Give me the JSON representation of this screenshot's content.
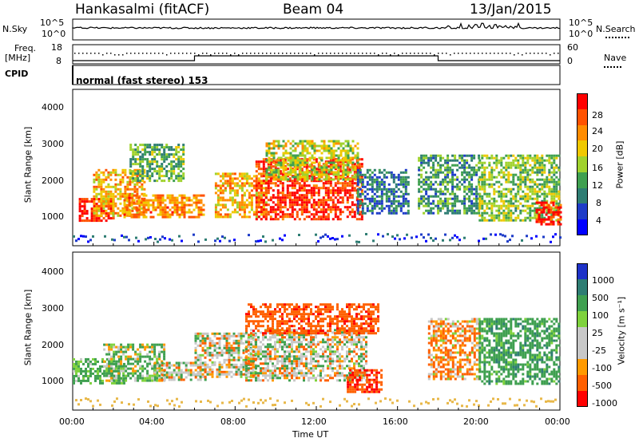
{
  "header": {
    "station": "Hankasalmi (fitACF)",
    "beam": "Beam 04",
    "date": "13/Jan/2015"
  },
  "nsky_panel": {
    "left_label": "N.Sky",
    "left_ticks": [
      "10^5",
      "10^0"
    ],
    "right_label": "N.Search",
    "right_ticks": [
      "10^5",
      "10^0"
    ]
  },
  "freq_panel": {
    "left_label_1": "Freq.",
    "left_label_2": "[MHz]",
    "left_ticks": [
      "18",
      "8"
    ],
    "right_label": "Nave",
    "right_ticks": [
      "60",
      "0"
    ]
  },
  "cpid_panel": {
    "label": "CPID",
    "program": "normal (fast stereo) 153"
  },
  "time_axis": {
    "ticks": [
      "00:00",
      "04:00",
      "08:00",
      "12:00",
      "16:00",
      "20:00",
      "00:00"
    ],
    "label": "Time UT"
  },
  "power_panel": {
    "ylabel": "Slant Range [km]",
    "yticks": [
      "4000",
      "3000",
      "2000",
      "1000"
    ],
    "colorbar_label": "Power [dB]",
    "colorbar_ticks": [
      "28",
      "24",
      "20",
      "16",
      "12",
      "8",
      "4"
    ],
    "colors": [
      "#ff0000",
      "#ff5200",
      "#ff8c00",
      "#f0c800",
      "#a0d22d",
      "#3fa050",
      "#2e7d73",
      "#1e3cc8",
      "#0000ff"
    ]
  },
  "velocity_panel": {
    "ylabel": "Slant Range [km]",
    "yticks": [
      "4000",
      "3000",
      "2000",
      "1000"
    ],
    "colorbar_label": "Velocity [m s⁻¹]",
    "colorbar_ticks": [
      "1000",
      "500",
      "100",
      "25",
      "-25",
      "-100",
      "-500",
      "-1000"
    ],
    "colors": [
      "#1e32c8",
      "#2e7d73",
      "#3fa050",
      "#7ed23c",
      "#c8c8c8",
      "#c8c8c8",
      "#ff9a00",
      "#ff6000",
      "#ff0000"
    ]
  },
  "chart_data": [
    {
      "type": "heatmap",
      "title": "Power",
      "xlabel": "Time UT",
      "ylabel": "Slant Range [km]",
      "xlim": [
        "00:00",
        "24:00"
      ],
      "ylim": [
        180,
        4500
      ],
      "colorbar": {
        "label": "Power [dB]",
        "range": [
          0,
          30
        ],
        "ticks": [
          4,
          8,
          12,
          16,
          20,
          24,
          28
        ]
      },
      "regions": [
        {
          "t": [
            0.3,
            2.0
          ],
          "r": [
            900,
            1500
          ],
          "level": 28
        },
        {
          "t": [
            1.0,
            3.5
          ],
          "r": [
            1000,
            2300
          ],
          "level": 20
        },
        {
          "t": [
            2.5,
            6.5
          ],
          "r": [
            1000,
            1600
          ],
          "level": 22
        },
        {
          "t": [
            2.8,
            5.5
          ],
          "r": [
            2000,
            3000
          ],
          "level": 12
        },
        {
          "t": [
            7.0,
            9.5
          ],
          "r": [
            1000,
            2200
          ],
          "level": 20
        },
        {
          "t": [
            9.0,
            14.3
          ],
          "r": [
            900,
            2600
          ],
          "level": 27
        },
        {
          "t": [
            9.5,
            14.0
          ],
          "r": [
            2000,
            3100
          ],
          "level": 16
        },
        {
          "t": [
            14.0,
            16.5
          ],
          "r": [
            1100,
            2300
          ],
          "level": 8
        },
        {
          "t": [
            17.0,
            20.0
          ],
          "r": [
            1100,
            2700
          ],
          "level": 10
        },
        {
          "t": [
            20.0,
            24.0
          ],
          "r": [
            900,
            2700
          ],
          "level": 14
        },
        {
          "t": [
            22.8,
            24.0
          ],
          "r": [
            800,
            1400
          ],
          "level": 28
        }
      ]
    },
    {
      "type": "heatmap",
      "title": "Velocity",
      "xlabel": "Time UT",
      "ylabel": "Slant Range [km]",
      "xlim": [
        "00:00",
        "24:00"
      ],
      "ylim": [
        180,
        4500
      ],
      "colorbar": {
        "label": "Velocity [m s⁻¹]",
        "ticks": [
          1000,
          500,
          100,
          25,
          -25,
          -100,
          -500,
          -1000
        ]
      },
      "regions": [
        {
          "t": [
            0.0,
            2.5
          ],
          "r": [
            900,
            1600
          ],
          "velocity": 150
        },
        {
          "t": [
            1.5,
            4.5
          ],
          "r": [
            1000,
            2000
          ],
          "velocity": 80
        },
        {
          "t": [
            4.0,
            6.5
          ],
          "r": [
            1000,
            1500
          ],
          "velocity": 0
        },
        {
          "t": [
            6.0,
            9.0
          ],
          "r": [
            1100,
            2300
          ],
          "velocity": 0
        },
        {
          "t": [
            8.5,
            14.5
          ],
          "r": [
            1000,
            2400
          ],
          "velocity": 0
        },
        {
          "t": [
            8.5,
            15.0
          ],
          "r": [
            2300,
            3100
          ],
          "velocity": -400
        },
        {
          "t": [
            13.5,
            15.2
          ],
          "r": [
            700,
            1300
          ],
          "velocity": -500
        },
        {
          "t": [
            17.5,
            20.0
          ],
          "r": [
            1000,
            2700
          ],
          "velocity": -100
        },
        {
          "t": [
            20.0,
            24.0
          ],
          "r": [
            900,
            2700
          ],
          "velocity": 200
        }
      ]
    }
  ]
}
